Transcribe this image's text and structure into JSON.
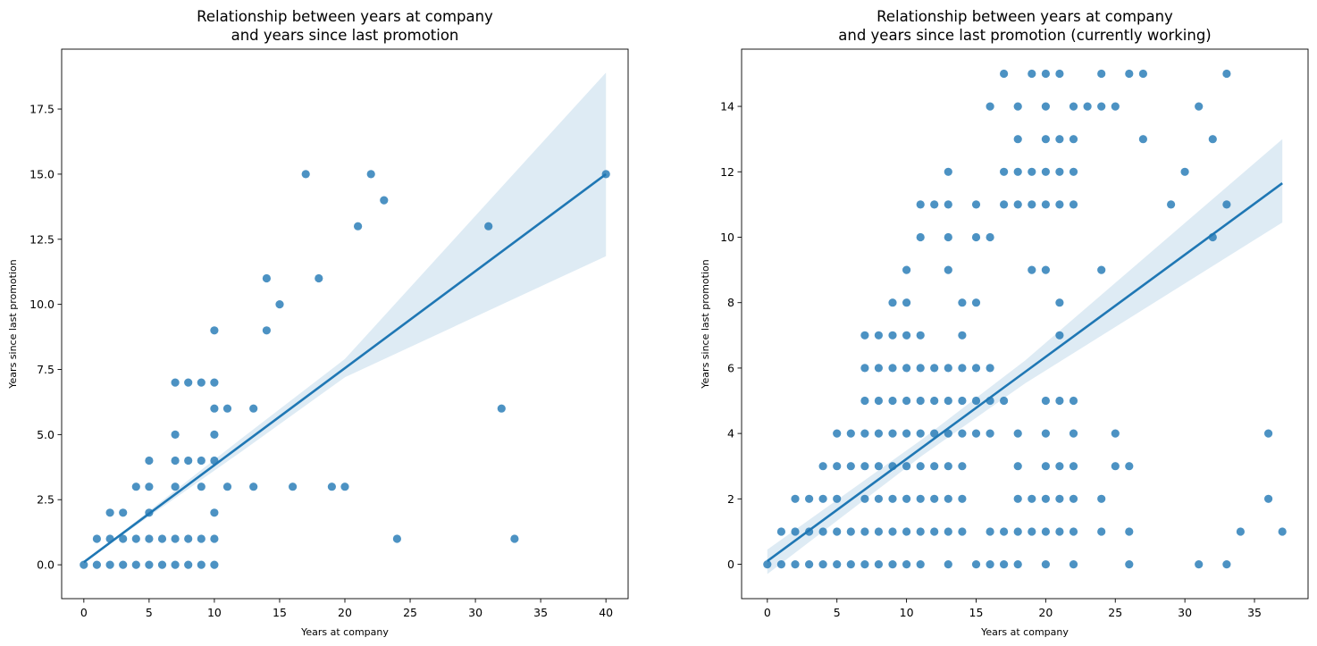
{
  "chart_data": [
    {
      "type": "scatter",
      "title": "Relationship between years at company\nand years since last promotion",
      "xlabel": "Years at company",
      "ylabel": "Years since last promotion",
      "xlim": [
        -1.7,
        41.7
      ],
      "ylim": [
        -1.3,
        19.8
      ],
      "xticks": [
        0,
        5,
        10,
        15,
        20,
        25,
        30,
        35,
        40
      ],
      "yticks": [
        0.0,
        2.5,
        5.0,
        7.5,
        10.0,
        12.5,
        15.0,
        17.5
      ],
      "ytick_format": "1dp",
      "point_color": "#1f77b4",
      "grid": false,
      "series": [
        {
          "points": [
            [
              0,
              0
            ],
            [
              1,
              0
            ],
            [
              2,
              0
            ],
            [
              3,
              0
            ],
            [
              4,
              0
            ],
            [
              5,
              0
            ],
            [
              6,
              0
            ],
            [
              7,
              0
            ],
            [
              8,
              0
            ],
            [
              9,
              0
            ],
            [
              10,
              0
            ],
            [
              1,
              1
            ],
            [
              2,
              1
            ],
            [
              3,
              1
            ],
            [
              4,
              1
            ],
            [
              5,
              1
            ],
            [
              6,
              1
            ],
            [
              7,
              1
            ],
            [
              8,
              1
            ],
            [
              9,
              1
            ],
            [
              10,
              1
            ],
            [
              2,
              2
            ],
            [
              3,
              2
            ],
            [
              5,
              2
            ],
            [
              10,
              2
            ],
            [
              4,
              3
            ],
            [
              5,
              3
            ],
            [
              7,
              3
            ],
            [
              9,
              3
            ],
            [
              11,
              3
            ],
            [
              13,
              3
            ],
            [
              16,
              3
            ],
            [
              19,
              3
            ],
            [
              20,
              3
            ],
            [
              5,
              4
            ],
            [
              7,
              4
            ],
            [
              8,
              4
            ],
            [
              9,
              4
            ],
            [
              10,
              4
            ],
            [
              7,
              5
            ],
            [
              10,
              5
            ],
            [
              10,
              6
            ],
            [
              11,
              6
            ],
            [
              13,
              6
            ],
            [
              32,
              6
            ],
            [
              7,
              7
            ],
            [
              8,
              7
            ],
            [
              9,
              7
            ],
            [
              10,
              7
            ],
            [
              10,
              9
            ],
            [
              14,
              9
            ],
            [
              15,
              10
            ],
            [
              14,
              11
            ],
            [
              18,
              11
            ],
            [
              21,
              13
            ],
            [
              31,
              13
            ],
            [
              23,
              14
            ],
            [
              17,
              15
            ],
            [
              22,
              15
            ],
            [
              40,
              15
            ],
            [
              24,
              1
            ],
            [
              33,
              1
            ]
          ],
          "fit": {
            "x0": 0,
            "x1": 40,
            "y0": 0.1,
            "y1": 15.0,
            "ci_upper_end": 18.9,
            "ci_lower_end": 11.85
          }
        }
      ]
    },
    {
      "type": "scatter",
      "title": "Relationship between years at company\nand years since last promotion (currently working)",
      "xlabel": "Years at company",
      "ylabel": "Years since last promotion",
      "xlim": [
        -1.85,
        38.85
      ],
      "ylim": [
        -1.05,
        15.75
      ],
      "xticks": [
        0,
        5,
        10,
        15,
        20,
        25,
        30,
        35
      ],
      "yticks": [
        0,
        2,
        4,
        6,
        8,
        10,
        12,
        14
      ],
      "ytick_format": "int",
      "point_color": "#1f77b4",
      "grid": false,
      "series": [
        {
          "points": [
            [
              0,
              0
            ],
            [
              1,
              0
            ],
            [
              2,
              0
            ],
            [
              3,
              0
            ],
            [
              4,
              0
            ],
            [
              5,
              0
            ],
            [
              6,
              0
            ],
            [
              7,
              0
            ],
            [
              8,
              0
            ],
            [
              9,
              0
            ],
            [
              10,
              0
            ],
            [
              11,
              0
            ],
            [
              13,
              0
            ],
            [
              15,
              0
            ],
            [
              16,
              0
            ],
            [
              17,
              0
            ],
            [
              18,
              0
            ],
            [
              20,
              0
            ],
            [
              22,
              0
            ],
            [
              26,
              0
            ],
            [
              31,
              0
            ],
            [
              33,
              0
            ],
            [
              1,
              1
            ],
            [
              2,
              1
            ],
            [
              3,
              1
            ],
            [
              4,
              1
            ],
            [
              5,
              1
            ],
            [
              6,
              1
            ],
            [
              7,
              1
            ],
            [
              8,
              1
            ],
            [
              9,
              1
            ],
            [
              10,
              1
            ],
            [
              11,
              1
            ],
            [
              12,
              1
            ],
            [
              13,
              1
            ],
            [
              14,
              1
            ],
            [
              16,
              1
            ],
            [
              17,
              1
            ],
            [
              18,
              1
            ],
            [
              19,
              1
            ],
            [
              20,
              1
            ],
            [
              21,
              1
            ],
            [
              22,
              1
            ],
            [
              24,
              1
            ],
            [
              26,
              1
            ],
            [
              34,
              1
            ],
            [
              37,
              1
            ],
            [
              2,
              2
            ],
            [
              3,
              2
            ],
            [
              4,
              2
            ],
            [
              5,
              2
            ],
            [
              7,
              2
            ],
            [
              8,
              2
            ],
            [
              9,
              2
            ],
            [
              10,
              2
            ],
            [
              11,
              2
            ],
            [
              12,
              2
            ],
            [
              13,
              2
            ],
            [
              14,
              2
            ],
            [
              18,
              2
            ],
            [
              19,
              2
            ],
            [
              20,
              2
            ],
            [
              21,
              2
            ],
            [
              22,
              2
            ],
            [
              24,
              2
            ],
            [
              36,
              2
            ],
            [
              4,
              3
            ],
            [
              5,
              3
            ],
            [
              6,
              3
            ],
            [
              7,
              3
            ],
            [
              8,
              3
            ],
            [
              9,
              3
            ],
            [
              10,
              3
            ],
            [
              11,
              3
            ],
            [
              12,
              3
            ],
            [
              13,
              3
            ],
            [
              14,
              3
            ],
            [
              18,
              3
            ],
            [
              20,
              3
            ],
            [
              21,
              3
            ],
            [
              22,
              3
            ],
            [
              25,
              3
            ],
            [
              26,
              3
            ],
            [
              5,
              4
            ],
            [
              6,
              4
            ],
            [
              7,
              4
            ],
            [
              8,
              4
            ],
            [
              9,
              4
            ],
            [
              10,
              4
            ],
            [
              11,
              4
            ],
            [
              12,
              4
            ],
            [
              13,
              4
            ],
            [
              14,
              4
            ],
            [
              15,
              4
            ],
            [
              16,
              4
            ],
            [
              18,
              4
            ],
            [
              20,
              4
            ],
            [
              22,
              4
            ],
            [
              25,
              4
            ],
            [
              36,
              4
            ],
            [
              7,
              5
            ],
            [
              8,
              5
            ],
            [
              9,
              5
            ],
            [
              10,
              5
            ],
            [
              11,
              5
            ],
            [
              12,
              5
            ],
            [
              13,
              5
            ],
            [
              14,
              5
            ],
            [
              15,
              5
            ],
            [
              16,
              5
            ],
            [
              17,
              5
            ],
            [
              20,
              5
            ],
            [
              21,
              5
            ],
            [
              22,
              5
            ],
            [
              7,
              6
            ],
            [
              8,
              6
            ],
            [
              9,
              6
            ],
            [
              10,
              6
            ],
            [
              11,
              6
            ],
            [
              12,
              6
            ],
            [
              13,
              6
            ],
            [
              14,
              6
            ],
            [
              15,
              6
            ],
            [
              16,
              6
            ],
            [
              7,
              7
            ],
            [
              8,
              7
            ],
            [
              9,
              7
            ],
            [
              10,
              7
            ],
            [
              11,
              7
            ],
            [
              14,
              7
            ],
            [
              21,
              7
            ],
            [
              9,
              8
            ],
            [
              10,
              8
            ],
            [
              14,
              8
            ],
            [
              15,
              8
            ],
            [
              21,
              8
            ],
            [
              10,
              9
            ],
            [
              13,
              9
            ],
            [
              19,
              9
            ],
            [
              20,
              9
            ],
            [
              24,
              9
            ],
            [
              11,
              10
            ],
            [
              13,
              10
            ],
            [
              15,
              10
            ],
            [
              16,
              10
            ],
            [
              32,
              10
            ],
            [
              11,
              11
            ],
            [
              12,
              11
            ],
            [
              13,
              11
            ],
            [
              15,
              11
            ],
            [
              17,
              11
            ],
            [
              18,
              11
            ],
            [
              19,
              11
            ],
            [
              20,
              11
            ],
            [
              21,
              11
            ],
            [
              22,
              11
            ],
            [
              29,
              11
            ],
            [
              33,
              11
            ],
            [
              13,
              12
            ],
            [
              17,
              12
            ],
            [
              18,
              12
            ],
            [
              19,
              12
            ],
            [
              20,
              12
            ],
            [
              21,
              12
            ],
            [
              22,
              12
            ],
            [
              30,
              12
            ],
            [
              18,
              13
            ],
            [
              20,
              13
            ],
            [
              21,
              13
            ],
            [
              22,
              13
            ],
            [
              27,
              13
            ],
            [
              32,
              13
            ],
            [
              16,
              14
            ],
            [
              18,
              14
            ],
            [
              20,
              14
            ],
            [
              22,
              14
            ],
            [
              23,
              14
            ],
            [
              24,
              14
            ],
            [
              25,
              14
            ],
            [
              31,
              14
            ],
            [
              17,
              15
            ],
            [
              19,
              15
            ],
            [
              20,
              15
            ],
            [
              21,
              15
            ],
            [
              24,
              15
            ],
            [
              26,
              15
            ],
            [
              27,
              15
            ],
            [
              33,
              15
            ]
          ],
          "fit": {
            "x0": 0,
            "x1": 37,
            "y0": 0.1,
            "y1": 11.65,
            "ci_upper_start": 0.45,
            "ci_lower_start": -0.3,
            "ci_upper_end": 13.0,
            "ci_lower_end": 10.45
          }
        }
      ]
    }
  ]
}
